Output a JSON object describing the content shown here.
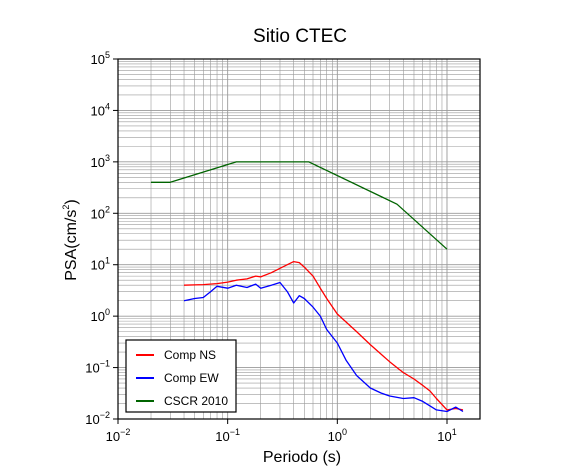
{
  "chart_data": {
    "type": "line",
    "title": "Sitio CTEC",
    "xlabel": "Periodo (s)",
    "ylabel": {
      "base": "PSA(cm/s",
      "sup": "2",
      "close": ")"
    },
    "x_scale": "log",
    "y_scale": "log",
    "xlim": [
      0.01,
      20
    ],
    "ylim": [
      0.01,
      100000
    ],
    "grid": true,
    "legend_position": "bottom-left",
    "x_ticks": [
      {
        "base": "10",
        "exp": "−2",
        "value": 0.01
      },
      {
        "base": "10",
        "exp": "−1",
        "value": 0.1
      },
      {
        "base": "10",
        "exp": "0",
        "value": 1
      },
      {
        "base": "10",
        "exp": "1",
        "value": 10
      }
    ],
    "y_ticks": [
      {
        "base": "10",
        "exp": "−2",
        "value": 0.01
      },
      {
        "base": "10",
        "exp": "−1",
        "value": 0.1
      },
      {
        "base": "10",
        "exp": "0",
        "value": 1
      },
      {
        "base": "10",
        "exp": "1",
        "value": 10
      },
      {
        "base": "10",
        "exp": "2",
        "value": 100
      },
      {
        "base": "10",
        "exp": "3",
        "value": 1000
      },
      {
        "base": "10",
        "exp": "4",
        "value": 10000
      },
      {
        "base": "10",
        "exp": "5",
        "value": 100000
      }
    ],
    "series": [
      {
        "name": "Comp NS",
        "color": "#ff0000",
        "x": [
          0.04,
          0.06,
          0.08,
          0.1,
          0.12,
          0.15,
          0.18,
          0.2,
          0.25,
          0.3,
          0.35,
          0.4,
          0.45,
          0.5,
          0.6,
          0.7,
          0.8,
          1.0,
          1.5,
          2.0,
          3.0,
          4.0,
          5.0,
          6.0,
          7.0,
          8.0,
          10.0,
          12.0,
          14.0
        ],
        "y": [
          4.0,
          4.1,
          4.3,
          4.6,
          5.0,
          5.3,
          6.0,
          5.8,
          7.0,
          8.5,
          10.0,
          11.5,
          11.0,
          9.0,
          6.0,
          3.5,
          2.2,
          1.1,
          0.5,
          0.28,
          0.13,
          0.08,
          0.06,
          0.045,
          0.035,
          0.025,
          0.015,
          0.016,
          0.015
        ]
      },
      {
        "name": "Comp EW",
        "color": "#0000ff",
        "x": [
          0.04,
          0.05,
          0.06,
          0.07,
          0.08,
          0.1,
          0.12,
          0.15,
          0.18,
          0.2,
          0.25,
          0.3,
          0.35,
          0.4,
          0.45,
          0.5,
          0.6,
          0.7,
          0.8,
          1.0,
          1.2,
          1.5,
          2.0,
          2.5,
          3.0,
          4.0,
          5.0,
          6.0,
          7.0,
          8.0,
          10.0,
          12.0,
          14.0
        ],
        "y": [
          2.0,
          2.2,
          2.3,
          3.0,
          3.8,
          3.5,
          4.0,
          3.6,
          4.2,
          3.5,
          4.0,
          4.5,
          3.0,
          1.8,
          2.5,
          2.2,
          1.5,
          1.0,
          0.55,
          0.3,
          0.14,
          0.07,
          0.04,
          0.032,
          0.028,
          0.025,
          0.026,
          0.022,
          0.018,
          0.015,
          0.014,
          0.017,
          0.014
        ]
      },
      {
        "name": "CSCR 2010",
        "color": "#006400",
        "x": [
          0.02,
          0.03,
          0.12,
          0.55,
          3.5,
          10.0
        ],
        "y": [
          400,
          400,
          1000,
          1000,
          150,
          20
        ]
      }
    ]
  }
}
